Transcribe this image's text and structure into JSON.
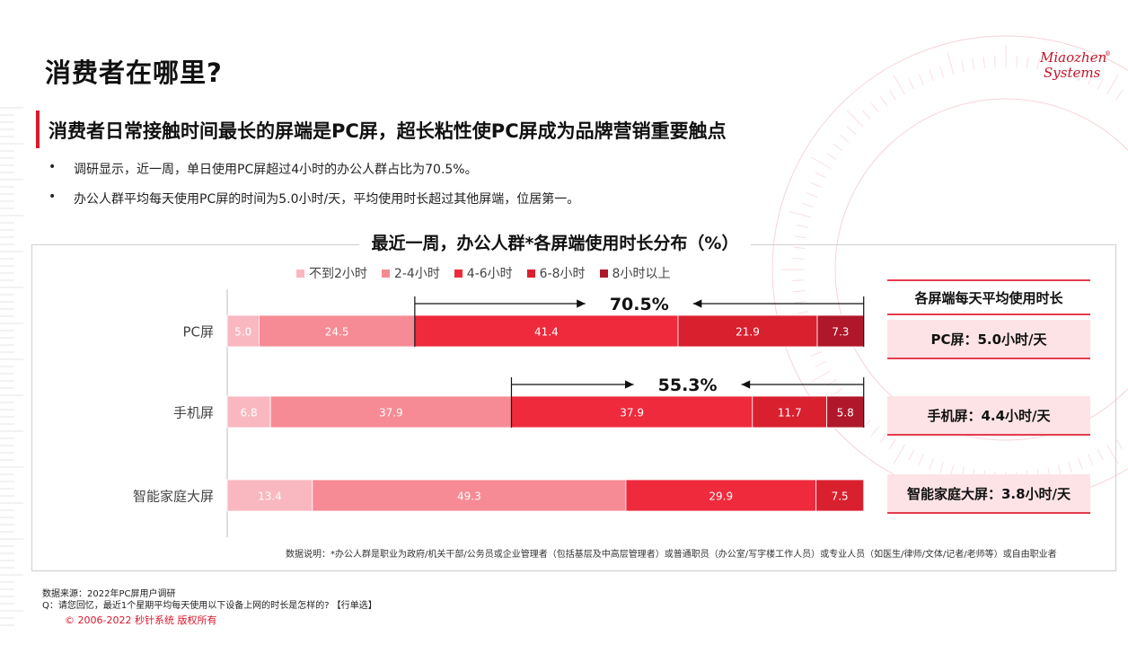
{
  "page": {
    "title": "消费者在哪里?",
    "subtitle": "消费者日常接触时间最长的屏端是PC屏，超长粘性使PC屏成为品牌营销重要触点",
    "bullets": [
      "调研显示，近一周，单日使用PC屏超过4小时的办公人群占比为70.5%。",
      "办公人群平均每天使用PC屏的时间为5.0小时/天，平均使用时长超过其他屏端，位居第一。"
    ],
    "bullet_symbol": "•"
  },
  "logo": {
    "line1": "Miaozhen",
    "line2": "Systems",
    "reg": "®"
  },
  "chart_data": {
    "type": "bar",
    "orientation": "horizontal",
    "stacked": true,
    "title": "最近一周，办公人群*各屏端使用时长分布（%）",
    "categories": [
      "PC屏",
      "手机屏",
      "智能家庭大屏"
    ],
    "series": [
      {
        "name": "不到2小时",
        "color": "#f9b8c0",
        "values": [
          5.0,
          6.8,
          13.4
        ]
      },
      {
        "name": "2-4小时",
        "color": "#f68b95",
        "values": [
          24.5,
          37.9,
          49.3
        ]
      },
      {
        "name": "4-6小时",
        "color": "#ee2a3c",
        "values": [
          41.4,
          37.9,
          29.9
        ]
      },
      {
        "name": "6-8小时",
        "color": "#d9202f",
        "values": [
          21.9,
          11.7,
          7.5
        ]
      },
      {
        "name": "8小时以上",
        "color": "#b0172a",
        "values": [
          7.3,
          5.8,
          null
        ]
      }
    ],
    "value_labels": [
      [
        "5.0",
        "24.5",
        "41.4",
        "21.9",
        "7.3"
      ],
      [
        "6.8",
        "37.9",
        "37.9",
        "11.7",
        "5.8"
      ],
      [
        "13.4",
        "49.3",
        "29.9",
        "7.5"
      ]
    ],
    "annotations": [
      {
        "category": "PC屏",
        "text": "70.5%",
        "from_series": 2
      },
      {
        "category": "手机屏",
        "text": "55.3%",
        "from_series": 2
      }
    ],
    "legend_position": "top",
    "xlim": [
      0,
      100
    ]
  },
  "avg_panel": {
    "header": "各屏端每天平均使用时长",
    "items": [
      "PC屏：5.0小时/天",
      "手机屏：4.4小时/天",
      "智能家庭大屏：3.8小时/天"
    ]
  },
  "note": "数据说明：*办公人群是职业为政府/机关干部/公务员或企业管理者（包括基层及中高层管理者）或普通职员（办公室/写字楼工作人员）或专业人员（如医生/律师/文体/记者/老师等）或自由职业者",
  "source": {
    "line1": "数据来源：2022年PC屏用户调研",
    "line2": "Q：请您回忆，最近1个星期平均每天使用以下设备上网的时长是怎样的?  【行单选】"
  },
  "copyright": "© 2006-2022 秒针系统 版权所有"
}
